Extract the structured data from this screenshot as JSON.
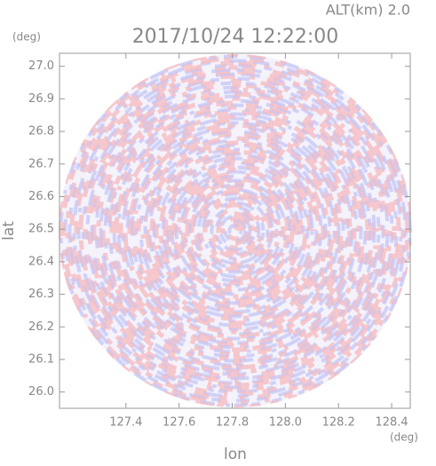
{
  "chart_data": {
    "type": "radar-image",
    "title": "2017/10/24 12:22:00",
    "subtitle": "ALT(km) 2.0",
    "x_label": "lon",
    "y_label": "lat",
    "x_unit": "(deg)",
    "y_unit": "(deg)",
    "xlim": [
      127.15,
      128.47
    ],
    "ylim": [
      25.95,
      27.04
    ],
    "xticks": [
      127.4,
      127.6,
      127.8,
      {
        "value": 128.0,
        "label": "128.0"
      },
      128.2,
      128.4
    ],
    "yticks": [
      {
        "value": 26.0,
        "label": "26.0"
      },
      26.1,
      26.2,
      26.3,
      26.4,
      26.5,
      26.6,
      26.7,
      26.8,
      26.9,
      {
        "value": 27.0,
        "label": "27.0"
      }
    ]
  }
}
